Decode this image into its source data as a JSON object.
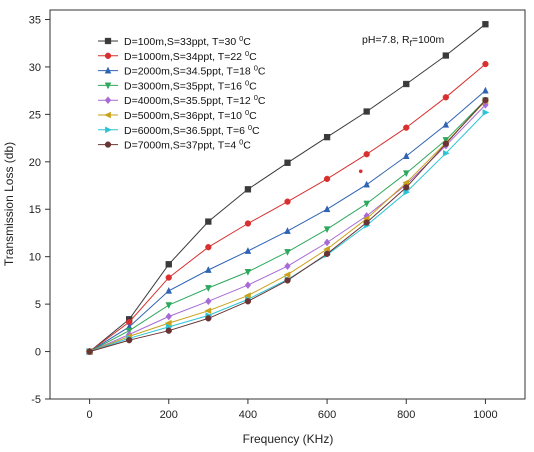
{
  "chart_data": {
    "type": "line",
    "title": "",
    "xlabel": "Frequency (KHz)",
    "ylabel": "Transmission Loss (db)",
    "xlim": [
      -100,
      1100
    ],
    "ylim": [
      -5,
      36
    ],
    "xticks": [
      0,
      200,
      400,
      600,
      800,
      1000
    ],
    "yticks": [
      -5,
      0,
      5,
      10,
      15,
      20,
      25,
      30,
      35
    ],
    "grid": false,
    "legend_position": "top-left",
    "annotation": {
      "main": "pH=7.8, R",
      "sub": "f",
      "tail": "=100m"
    },
    "x": [
      0,
      100,
      200,
      300,
      400,
      500,
      600,
      700,
      800,
      900,
      1000
    ],
    "series": [
      {
        "name": "D=100m,S=33ppt, T=30 ⁰C",
        "legend_main": "D=100m,S=33ppt, T=30 ",
        "legend_sup": "0",
        "legend_tail": "C",
        "color": "#3a3a3a",
        "marker": "square",
        "values": [
          0,
          3.4,
          9.2,
          13.7,
          17.1,
          19.9,
          22.6,
          25.3,
          28.2,
          31.2,
          34.5
        ]
      },
      {
        "name": "D=1000m,S=34ppt, T=22 ⁰C",
        "legend_main": "D=1000m,S=34ppt, T=22 ",
        "legend_sup": "0",
        "legend_tail": "C",
        "color": "#d9302f",
        "marker": "circle",
        "values": [
          0,
          3.1,
          7.8,
          11.0,
          13.5,
          15.8,
          18.2,
          20.8,
          23.6,
          26.8,
          30.3
        ]
      },
      {
        "name": "D=2000m,S=34.5ppt, T=18 ⁰C",
        "legend_main": "D=2000m,S=34.5ppt, T=18 ",
        "legend_sup": "0",
        "legend_tail": "C",
        "color": "#2f63b3",
        "marker": "triangle-up",
        "values": [
          0,
          2.6,
          6.4,
          8.6,
          10.6,
          12.7,
          15.0,
          17.6,
          20.6,
          23.9,
          27.5
        ]
      },
      {
        "name": "D=3000m,S=35ppt, T=16 ⁰C",
        "legend_main": "D=3000m,S=35ppt, T=16 ",
        "legend_sup": "0",
        "legend_tail": "C",
        "color": "#2fa85e",
        "marker": "triangle-down",
        "values": [
          0,
          2.2,
          4.9,
          6.7,
          8.4,
          10.5,
          12.9,
          15.6,
          18.8,
          22.3,
          26.5
        ]
      },
      {
        "name": "D=4000m,S=35.5ppt, T=12 ⁰C",
        "legend_main": "D=4000m,S=35.5ppt, T=12 ",
        "legend_sup": "0",
        "legend_tail": "C",
        "color": "#a86ad6",
        "marker": "diamond",
        "values": [
          0,
          1.8,
          3.7,
          5.3,
          7.0,
          9.0,
          11.5,
          14.3,
          17.6,
          21.7,
          26.0
        ]
      },
      {
        "name": "D=5000m,S=36ppt, T=10 ⁰C",
        "legend_main": "D=5000m,S=36ppt, T=10 ",
        "legend_sup": "0",
        "legend_tail": "C",
        "color": "#c9a21a",
        "marker": "triangle-left",
        "values": [
          0,
          1.6,
          3.0,
          4.3,
          5.9,
          8.1,
          10.8,
          14.0,
          17.8,
          22.0,
          26.4
        ]
      },
      {
        "name": "D=6000m,S=36.5ppt, T=6 ⁰C",
        "legend_main": "D=6000m,S=36.5ppt, T=6 ",
        "legend_sup": "0",
        "legend_tail": "C",
        "color": "#2bc4d6",
        "marker": "triangle-right",
        "values": [
          0,
          1.4,
          2.6,
          3.8,
          5.5,
          7.6,
          10.2,
          13.3,
          16.8,
          20.9,
          25.2
        ]
      },
      {
        "name": "D=7000m,S=37ppt, T=4 ⁰C",
        "legend_main": "D=7000m,S=37ppt, T=4 ",
        "legend_sup": "0",
        "legend_tail": "C",
        "color": "#6a3434",
        "marker": "circle",
        "values": [
          0,
          1.2,
          2.2,
          3.5,
          5.3,
          7.5,
          10.3,
          13.6,
          17.3,
          21.9,
          26.5
        ]
      }
    ],
    "stray_points": [
      {
        "x": 685,
        "y": 19.0,
        "color": "#d9302f"
      }
    ]
  }
}
